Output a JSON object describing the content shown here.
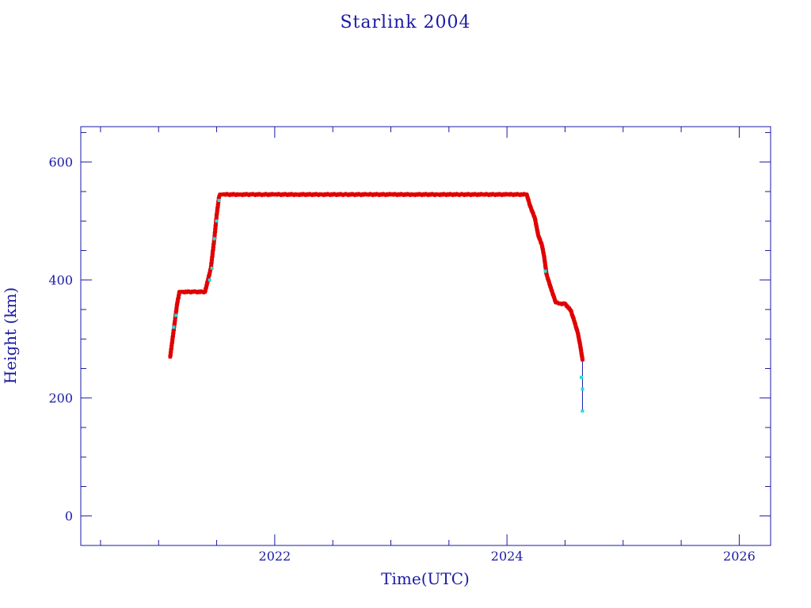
{
  "chart_data": {
    "type": "scatter",
    "title": "Starlink 2004",
    "xlabel": "Time(UTC)",
    "ylabel": "Height (km)",
    "xlim": [
      2020.33,
      2026.27
    ],
    "ylim": [
      -50,
      660
    ],
    "x_major_ticks": [
      2022,
      2024,
      2026
    ],
    "x_minor_ticks": [
      2020.5,
      2021,
      2021.5,
      2022.5,
      2023,
      2023.5,
      2024.5,
      2025,
      2025.5
    ],
    "y_major_ticks": [
      0,
      200,
      400,
      600
    ],
    "y_minor_ticks": [
      50,
      100,
      150,
      250,
      300,
      350,
      450,
      500,
      550,
      650
    ],
    "grid": false,
    "colors": {
      "axes": "#1a1aa6",
      "main_series": "#e00000",
      "highlight_series": "#22dddd",
      "decay_line": "#1a1aa6"
    },
    "series": [
      {
        "marker": "red-star",
        "x": [
          2021.1,
          2021.12,
          2021.14,
          2021.16,
          2021.18,
          2021.2,
          2021.3,
          2021.4,
          2021.45,
          2021.48,
          2021.5,
          2021.52,
          2021.53,
          2021.55,
          2021.6,
          2021.7,
          2021.8,
          2021.9,
          2022.0,
          2022.2,
          2022.4,
          2022.6,
          2022.8,
          2023.0,
          2023.2,
          2023.4,
          2023.6,
          2023.8,
          2024.0,
          2024.1,
          2024.17,
          2024.2,
          2024.24,
          2024.27,
          2024.3,
          2024.32,
          2024.34,
          2024.38,
          2024.42,
          2024.46,
          2024.5,
          2024.55,
          2024.58,
          2024.61,
          2024.63,
          2024.65
        ],
        "y": [
          270,
          300,
          330,
          360,
          380,
          380,
          380,
          380,
          420,
          470,
          510,
          540,
          545,
          545,
          545,
          545,
          545,
          545,
          545,
          545,
          545,
          545,
          545,
          545,
          545,
          545,
          545,
          545,
          545,
          545,
          545,
          525,
          505,
          475,
          460,
          440,
          410,
          385,
          362,
          360,
          360,
          348,
          330,
          310,
          290,
          265
        ]
      },
      {
        "marker": "cyan-dot",
        "x": [
          2021.13,
          2021.15,
          2021.44,
          2021.46,
          2021.48,
          2021.5,
          2021.52,
          2024.33,
          2024.64,
          2024.65,
          2024.65
        ],
        "y": [
          320,
          340,
          400,
          420,
          470,
          500,
          535,
          415,
          235,
          215,
          178
        ]
      }
    ],
    "decay_line": {
      "x": [
        2024.65,
        2024.65
      ],
      "y": [
        265,
        178
      ]
    }
  }
}
